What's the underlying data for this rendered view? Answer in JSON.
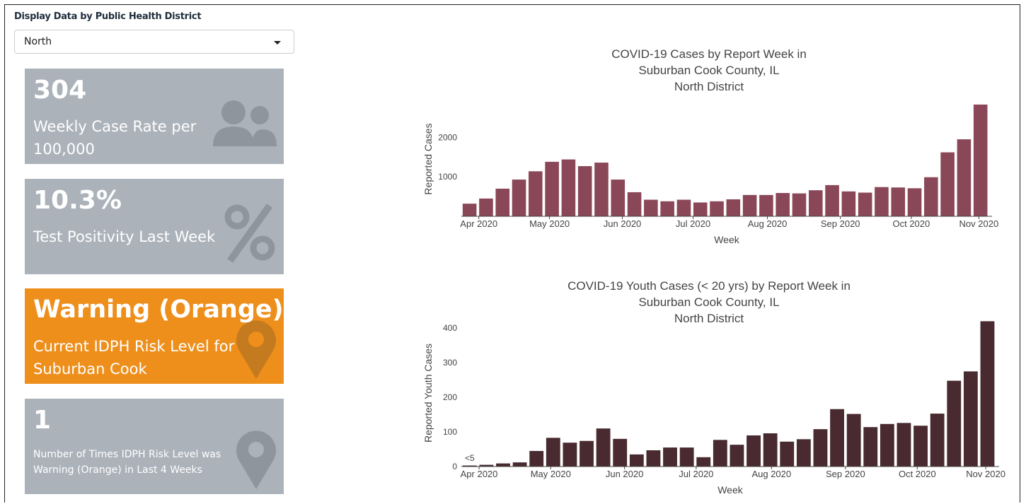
{
  "filter": {
    "label": "Display Data by Public Health District",
    "selected": "North"
  },
  "cards": [
    {
      "value": "304",
      "label": "Weekly Case Rate per 100,000"
    },
    {
      "value": "10.3%",
      "label": "Test Positivity Last Week"
    },
    {
      "value": "Warning (Orange)",
      "label": "Current IDPH Risk Level for Suburban Cook"
    },
    {
      "value": "1",
      "label": "Number of Times IDPH Risk Level was Warning (Orange) in Last 4 Weeks"
    }
  ],
  "chart_data": [
    {
      "type": "bar",
      "title": [
        "COVID-19 Cases by Report Week in",
        "Suburban Cook County, IL",
        "North District"
      ],
      "y_label": "Reported Cases",
      "x_label": "Week",
      "categories": [
        null,
        null,
        null,
        null,
        null,
        null,
        null,
        null,
        null,
        null,
        null,
        null,
        null,
        null,
        null,
        null,
        null,
        null,
        null,
        null,
        null,
        null,
        null,
        null,
        null,
        null,
        null,
        null,
        null,
        null,
        null,
        null
      ],
      "values": [
        320,
        450,
        700,
        930,
        1140,
        1380,
        1440,
        1270,
        1360,
        930,
        610,
        420,
        380,
        420,
        350,
        380,
        430,
        540,
        540,
        590,
        580,
        660,
        790,
        630,
        600,
        740,
        730,
        710,
        990,
        1620,
        1950,
        2830
      ],
      "color": "#8a4758",
      "xlim": [
        -0.5,
        31.7
      ],
      "xticks": [
        {
          "value": 0.56,
          "label": "Apr 2020"
        },
        {
          "value": 4.85,
          "label": "May 2020"
        },
        {
          "value": 9.27,
          "label": "Jun 2020"
        },
        {
          "value": 13.56,
          "label": "Jul 2020"
        },
        {
          "value": 18.07,
          "label": "Aug 2020"
        },
        {
          "value": 22.5,
          "label": "Sep 2020"
        },
        {
          "value": 26.8,
          "label": "Oct 2020"
        },
        {
          "value": 30.9,
          "label": "Nov 2020"
        }
      ],
      "ylim": [
        0,
        2900
      ],
      "yticks": [
        1000,
        2000
      ]
    },
    {
      "type": "bar",
      "title": [
        "COVID-19 Youth Cases (< 20 yrs) by Report Week in",
        "Suburban Cook County, IL",
        "North District"
      ],
      "y_label": "Reported Youth Cases",
      "x_label": "Week",
      "categories": [
        null,
        null,
        null,
        null,
        null,
        null,
        null,
        null,
        null,
        null,
        null,
        null,
        null,
        null,
        null,
        null,
        null,
        null,
        null,
        null,
        null,
        null,
        null,
        null,
        null,
        null,
        null,
        null,
        null,
        null,
        null,
        null
      ],
      "values": [
        3,
        5,
        9,
        12,
        45,
        83,
        69,
        74,
        110,
        80,
        35,
        47,
        55,
        55,
        27,
        77,
        63,
        90,
        96,
        72,
        79,
        108,
        166,
        152,
        114,
        123,
        126,
        118,
        153,
        248,
        275,
        420
      ],
      "color": "#482a30",
      "xlim": [
        -0.5,
        31.7
      ],
      "xticks": [
        {
          "value": 0.56,
          "label": "Apr 2020"
        },
        {
          "value": 4.85,
          "label": "May 2020"
        },
        {
          "value": 9.27,
          "label": "Jun 2020"
        },
        {
          "value": 13.56,
          "label": "Jul 2020"
        },
        {
          "value": 18.07,
          "label": "Aug 2020"
        },
        {
          "value": 22.5,
          "label": "Sep 2020"
        },
        {
          "value": 26.8,
          "label": "Oct 2020"
        },
        {
          "value": 30.9,
          "label": "Nov 2020"
        }
      ],
      "ylim": [
        0,
        425
      ],
      "yticks": [
        0,
        100,
        200,
        300,
        400
      ],
      "annotations": [
        "<5"
      ]
    }
  ]
}
